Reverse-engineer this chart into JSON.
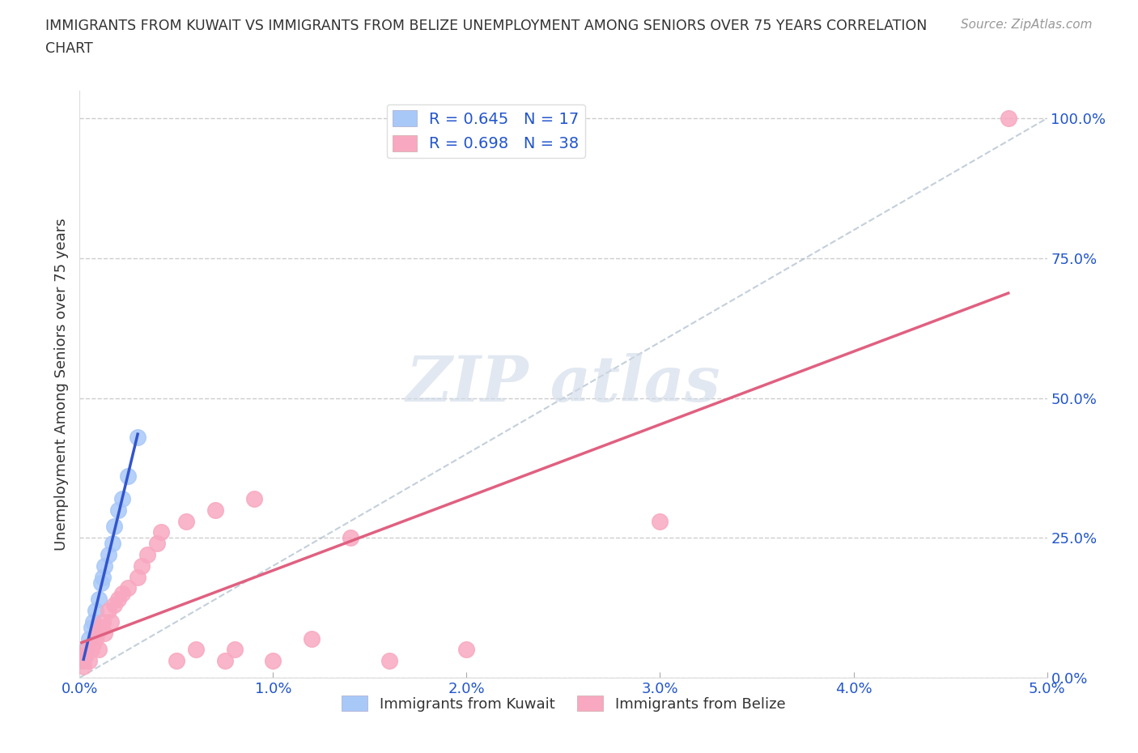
{
  "title_line1": "IMMIGRANTS FROM KUWAIT VS IMMIGRANTS FROM BELIZE UNEMPLOYMENT AMONG SENIORS OVER 75 YEARS CORRELATION",
  "title_line2": "CHART",
  "source": "Source: ZipAtlas.com",
  "ylabel": "Unemployment Among Seniors over 75 years",
  "xlim": [
    0.0,
    0.05
  ],
  "ylim": [
    0.0,
    1.05
  ],
  "xtick_vals": [
    0.0,
    0.01,
    0.02,
    0.03,
    0.04,
    0.05
  ],
  "xtick_labels": [
    "0.0%",
    "1.0%",
    "2.0%",
    "3.0%",
    "4.0%",
    "5.0%"
  ],
  "ytick_vals": [
    0.0,
    0.25,
    0.5,
    0.75,
    1.0
  ],
  "ytick_labels": [
    "0.0%",
    "25.0%",
    "50.0%",
    "75.0%",
    "100.0%"
  ],
  "kuwait_R": 0.645,
  "kuwait_N": 17,
  "belize_R": 0.698,
  "belize_N": 38,
  "kuwait_color": "#a8c8f8",
  "belize_color": "#f8a8c0",
  "kuwait_line_color": "#3355cc",
  "belize_line_color": "#e06080",
  "ref_line_color": "#aabbcc",
  "legend_text_color": "#2255cc",
  "watermark_color": "#d0dae8",
  "background_color": "#ffffff",
  "grid_color": "#cccccc",
  "kuwait_x": [
    0.0002,
    0.0003,
    0.0005,
    0.0006,
    0.0007,
    0.0008,
    0.001,
    0.0011,
    0.0012,
    0.0013,
    0.0015,
    0.0017,
    0.0018,
    0.002,
    0.0022,
    0.0025,
    0.003
  ],
  "kuwait_y": [
    0.03,
    0.05,
    0.07,
    0.09,
    0.1,
    0.12,
    0.14,
    0.17,
    0.18,
    0.2,
    0.22,
    0.24,
    0.27,
    0.3,
    0.32,
    0.36,
    0.43
  ],
  "belize_x": [
    0.0001,
    0.0002,
    0.0003,
    0.0004,
    0.0005,
    0.0006,
    0.0007,
    0.0008,
    0.0009,
    0.001,
    0.0011,
    0.0012,
    0.0013,
    0.0015,
    0.0016,
    0.0018,
    0.002,
    0.0022,
    0.0025,
    0.003,
    0.0032,
    0.0035,
    0.004,
    0.0042,
    0.005,
    0.0055,
    0.006,
    0.007,
    0.0075,
    0.008,
    0.009,
    0.01,
    0.012,
    0.014,
    0.016,
    0.02,
    0.03,
    0.048
  ],
  "belize_y": [
    0.03,
    0.02,
    0.04,
    0.05,
    0.03,
    0.05,
    0.06,
    0.07,
    0.08,
    0.05,
    0.09,
    0.1,
    0.08,
    0.12,
    0.1,
    0.13,
    0.14,
    0.15,
    0.16,
    0.18,
    0.2,
    0.22,
    0.24,
    0.26,
    0.03,
    0.28,
    0.05,
    0.3,
    0.03,
    0.05,
    0.32,
    0.03,
    0.07,
    0.25,
    0.03,
    0.05,
    0.28,
    1.0
  ]
}
